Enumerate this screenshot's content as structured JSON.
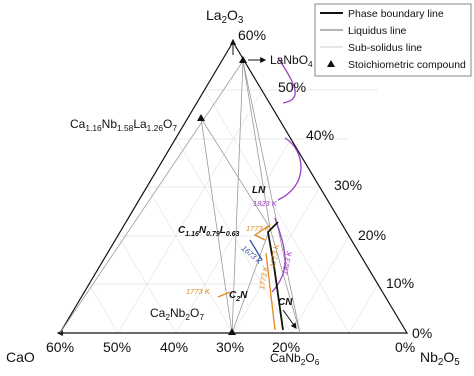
{
  "vertices": {
    "top": [
      "La",
      "2",
      "O",
      "3"
    ],
    "left": [
      "CaO"
    ],
    "right": [
      "Nb",
      "2",
      "O",
      "5"
    ]
  },
  "legend": [
    "Phase boundary line",
    "Liquidus line",
    "Sub-solidus line",
    "Stoichiometric compound"
  ],
  "bottom_ticks": [
    "60%",
    "50%",
    "40%",
    "30%",
    "20%"
  ],
  "bottom_end": "0%",
  "right_ticks": [
    "60%",
    "50%",
    "40%",
    "30%",
    "20%",
    "10%",
    "0%"
  ],
  "compounds": {
    "lanbo4": [
      "LaNbO",
      "4"
    ],
    "ca_nb_la": [
      "Ca",
      "1.16",
      "Nb",
      "1.58",
      "La",
      "1.26",
      "O",
      "7"
    ],
    "ca2nb2o7": [
      "Ca",
      "2",
      "Nb",
      "2",
      "O",
      "7"
    ],
    "canb2o6": [
      "CaNb",
      "2",
      "O",
      "6"
    ]
  },
  "regions": {
    "ln": [
      "LN"
    ],
    "cn": [
      "CN"
    ],
    "c2n": [
      "C",
      "2",
      "N"
    ],
    "c116": [
      "C",
      "1.16",
      "N",
      "0.79",
      "L",
      "0.63"
    ]
  },
  "temperatures": {
    "t1823a": "1823 K",
    "t1823b": "1823 K",
    "t1773a": "1773 K",
    "t1773b": "1773 K",
    "t1773c": "1773 K",
    "t1773d": "1773 K",
    "t1673": "1673 K"
  }
}
